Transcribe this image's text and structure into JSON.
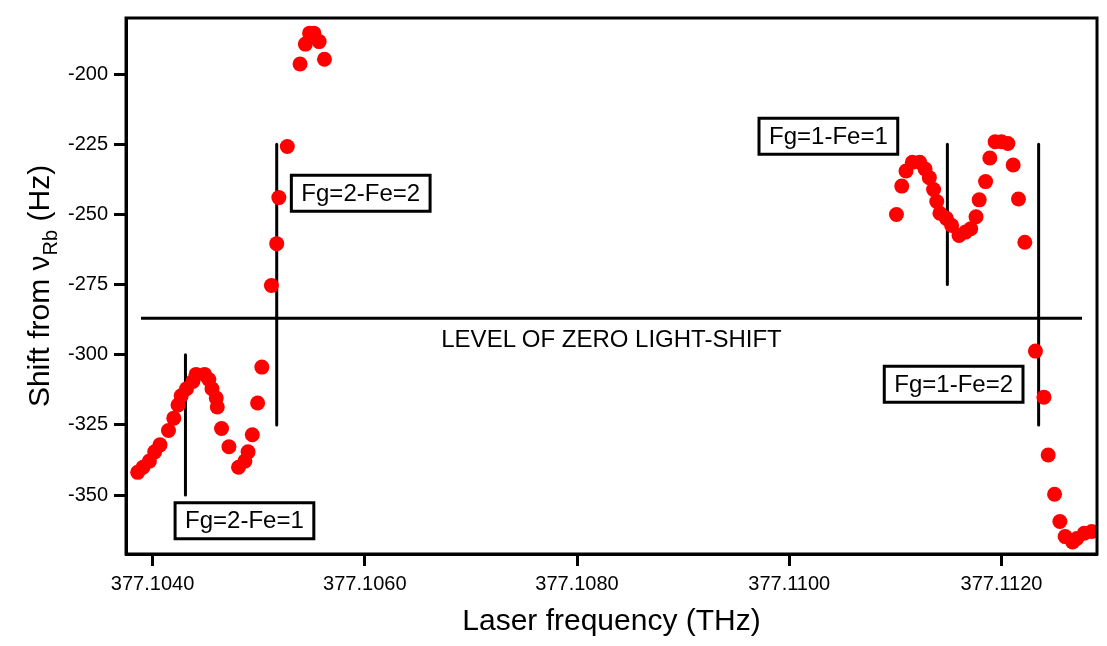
{
  "chart_data": {
    "type": "scatter",
    "xlabel": "Laser frequency (THz)",
    "ylabel": "Shift from ν$_{Rb}$ (Hz)",
    "xlim": [
      377.10375,
      377.1129
    ],
    "ylim": [
      -371,
      -180
    ],
    "xticks": [
      {
        "value": 377.104,
        "label": "377.1040"
      },
      {
        "value": 377.106,
        "label": "377.1060"
      },
      {
        "value": 377.108,
        "label": "377.1080"
      },
      {
        "value": 377.11,
        "label": "377.1100"
      },
      {
        "value": 377.112,
        "label": "377.1120"
      }
    ],
    "yticks": [
      -350,
      -325,
      -300,
      -275,
      -250,
      -225,
      -200
    ],
    "grid": false,
    "legend": false,
    "marker": "circle",
    "series": [
      {
        "color": "#ff0000",
        "x": [
          377.10386,
          377.10391,
          377.10397,
          377.10402,
          377.10407,
          377.10415,
          377.1042,
          377.10424,
          377.10427,
          377.10432,
          377.10438,
          377.10441,
          377.10449,
          377.10453,
          377.10456,
          377.1046,
          377.10461,
          377.10465,
          377.10472,
          377.10481,
          377.10487,
          377.1049,
          377.10494,
          377.10499,
          377.10503,
          377.10512,
          377.10517,
          377.10519,
          377.10527,
          377.10539,
          377.10544,
          377.10548,
          377.10552,
          377.10557,
          377.10562,
          377.11101,
          377.11106,
          377.1111,
          377.11116,
          377.11123,
          377.11128,
          377.11132,
          377.11136,
          377.11139,
          377.11142,
          377.11148,
          377.11153,
          377.1116,
          377.11166,
          377.11171,
          377.11176,
          377.11179,
          377.11185,
          377.11189,
          377.11194,
          377.112,
          377.11206,
          377.11211,
          377.11216,
          377.11222,
          377.11232,
          377.1124,
          377.11244,
          377.1125,
          377.11255,
          377.1126,
          377.11267,
          377.11271,
          377.11278,
          377.11285
        ],
        "values": [
          -341.9,
          -340.1,
          -337.9,
          -334.6,
          -332.1,
          -327.0,
          -322.6,
          -317.9,
          -314.6,
          -312.1,
          -309.5,
          -307.0,
          -307.0,
          -308.8,
          -312.1,
          -315.4,
          -318.6,
          -326.3,
          -332.8,
          -340.1,
          -337.9,
          -334.6,
          -328.5,
          -317.2,
          -304.4,
          -275.3,
          -260.4,
          -244.0,
          -225.8,
          -196.4,
          -189.3,
          -185.4,
          -185.4,
          -188.4,
          -194.7,
          -250.0,
          -239.9,
          -234.5,
          -231.4,
          -231.4,
          -233.8,
          -236.9,
          -241.1,
          -245.4,
          -249.6,
          -251.4,
          -253.9,
          -257.5,
          -256.3,
          -255.1,
          -250.8,
          -244.8,
          -238.3,
          -229.9,
          -224.1,
          -224.1,
          -224.7,
          -232.4,
          -244.5,
          -259.9,
          -298.7,
          -315.1,
          -335.7,
          -349.7,
          -359.4,
          -364.8,
          -366.7,
          -365.5,
          -363.6,
          -363.0
        ]
      },
      {
        "type": "line",
        "color": "#000000",
        "marker": "none",
        "x": [
          377.10431,
          377.10431
        ],
        "values": [
          -300,
          -350
        ]
      },
      {
        "type": "line",
        "color": "#000000",
        "marker": "none",
        "x": [
          377.10517,
          377.10517
        ],
        "values": [
          -225,
          -325
        ]
      },
      {
        "type": "line",
        "color": "#000000",
        "marker": "none",
        "x": [
          377.11149,
          377.11149
        ],
        "values": [
          -225,
          -275
        ]
      },
      {
        "type": "line",
        "color": "#000000",
        "marker": "none",
        "x": [
          377.11235,
          377.11235
        ],
        "values": [
          -225,
          -325
        ]
      }
    ],
    "ref_lines": [
      {
        "axis": "y",
        "value": -287,
        "label": "LEVEL OF ZERO LIGHT-SHIFT",
        "color": "#000000"
      }
    ],
    "annotations": [
      "Fg=2-Fe=1",
      "Fg=2-Fe=2",
      "Fg=1-Fe=1",
      "Fg=1-Fe=2"
    ]
  }
}
